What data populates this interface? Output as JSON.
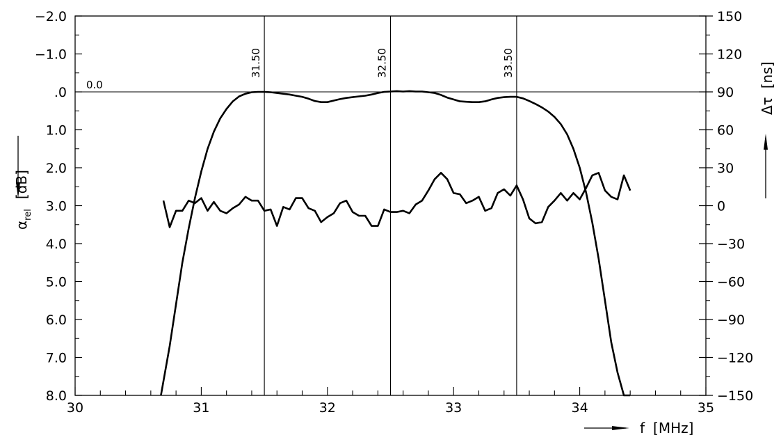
{
  "chart_data": {
    "type": "line",
    "x_axis": {
      "label": "f",
      "unit": "[MHz]",
      "lim": [
        30,
        35
      ],
      "ticks": [
        "30",
        "31",
        "32",
        "33",
        "34",
        "35"
      ]
    },
    "y_left": {
      "symbol": "α",
      "subscript": "rel",
      "unit": "[dB]",
      "lim": [
        -2.0,
        8.0
      ],
      "inverted": true,
      "ticks": [
        "−2.0",
        "−1.0",
        ".0",
        "1.0",
        "2.0",
        "3.0",
        "4.0",
        "5.0",
        "6.0",
        "7.0",
        "8.0"
      ]
    },
    "y_right": {
      "symbol": "Δτ",
      "unit": "[ns]",
      "lim": [
        -150,
        150
      ],
      "ticks": [
        "150",
        "120",
        "90",
        "60",
        "30",
        "0",
        "−30",
        "−60",
        "−90",
        "−120",
        "−150"
      ]
    },
    "reference_line": {
      "value": 0.0,
      "label": "0.0"
    },
    "markers": [
      {
        "x": 31.5,
        "label": "31.50"
      },
      {
        "x": 32.5,
        "label": "32.50"
      },
      {
        "x": 33.5,
        "label": "33.50"
      }
    ],
    "grid": false,
    "series": [
      {
        "axis": "left",
        "x": [
          30.68,
          30.75,
          30.8,
          30.85,
          30.9,
          30.95,
          31.0,
          31.05,
          31.1,
          31.15,
          31.2,
          31.25,
          31.3,
          31.35,
          31.4,
          31.45,
          31.5,
          31.55,
          31.6,
          31.65,
          31.7,
          31.75,
          31.8,
          31.85,
          31.9,
          31.95,
          32.0,
          32.05,
          32.1,
          32.15,
          32.2,
          32.25,
          32.3,
          32.35,
          32.4,
          32.45,
          32.5,
          32.55,
          32.6,
          32.65,
          32.7,
          32.75,
          32.8,
          32.85,
          32.9,
          32.95,
          33.0,
          33.05,
          33.1,
          33.15,
          33.2,
          33.25,
          33.3,
          33.35,
          33.4,
          33.45,
          33.5,
          33.55,
          33.6,
          33.65,
          33.7,
          33.75,
          33.8,
          33.85,
          33.9,
          33.95,
          34.0,
          34.05,
          34.1,
          34.15,
          34.2,
          34.25,
          34.3,
          34.35,
          34.4
        ],
        "values": [
          8.0,
          6.7,
          5.6,
          4.5,
          3.6,
          2.8,
          2.1,
          1.5,
          1.05,
          0.7,
          0.45,
          0.25,
          0.12,
          0.05,
          0.01,
          0.0,
          0.0,
          0.01,
          0.03,
          0.05,
          0.07,
          0.1,
          0.13,
          0.18,
          0.24,
          0.27,
          0.27,
          0.23,
          0.19,
          0.16,
          0.14,
          0.12,
          0.1,
          0.07,
          0.03,
          0.0,
          -0.01,
          -0.02,
          -0.01,
          -0.02,
          -0.01,
          -0.01,
          0.01,
          0.03,
          0.08,
          0.15,
          0.2,
          0.25,
          0.26,
          0.27,
          0.27,
          0.25,
          0.2,
          0.16,
          0.14,
          0.13,
          0.13,
          0.17,
          0.24,
          0.32,
          0.41,
          0.52,
          0.66,
          0.85,
          1.12,
          1.5,
          2.0,
          2.65,
          3.45,
          4.4,
          5.5,
          6.6,
          7.4,
          8.0,
          8.0
        ]
      },
      {
        "axis": "right",
        "x": [
          30.7,
          30.75,
          30.8,
          30.85,
          30.9,
          30.95,
          31.0,
          31.05,
          31.1,
          31.15,
          31.2,
          31.25,
          31.3,
          31.35,
          31.4,
          31.45,
          31.5,
          31.55,
          31.6,
          31.65,
          31.7,
          31.75,
          31.8,
          31.85,
          31.9,
          31.95,
          32.0,
          32.05,
          32.1,
          32.15,
          32.2,
          32.25,
          32.3,
          32.35,
          32.4,
          32.45,
          32.5,
          32.55,
          32.6,
          32.65,
          32.7,
          32.75,
          32.8,
          32.85,
          32.9,
          32.95,
          33.0,
          33.05,
          33.1,
          33.15,
          33.2,
          33.25,
          33.3,
          33.35,
          33.4,
          33.45,
          33.5,
          33.55,
          33.6,
          33.65,
          33.7,
          33.75,
          33.8,
          33.85,
          33.9,
          33.95,
          34.0,
          34.05,
          34.1,
          34.15,
          34.2,
          34.25,
          34.3,
          34.35,
          34.4
        ],
        "values": [
          4,
          -17,
          -4,
          -4,
          4,
          2,
          6,
          -4,
          3,
          -4,
          -6,
          -2,
          1,
          7,
          4,
          4,
          -4,
          -3,
          -16,
          -1,
          -3,
          6,
          6,
          -2,
          -4,
          -13,
          -9,
          -6,
          2,
          4,
          -5,
          -8,
          -8,
          -16,
          -16,
          -3,
          -5,
          -5,
          -4,
          -6,
          1,
          4,
          12,
          21,
          26,
          21,
          10,
          9,
          2,
          4,
          7,
          -4,
          -2,
          10,
          13,
          8,
          16,
          5,
          -10,
          -14,
          -13,
          -1,
          4,
          10,
          4,
          10,
          5,
          14,
          24,
          26,
          12,
          7,
          5,
          24,
          12
        ]
      }
    ]
  }
}
